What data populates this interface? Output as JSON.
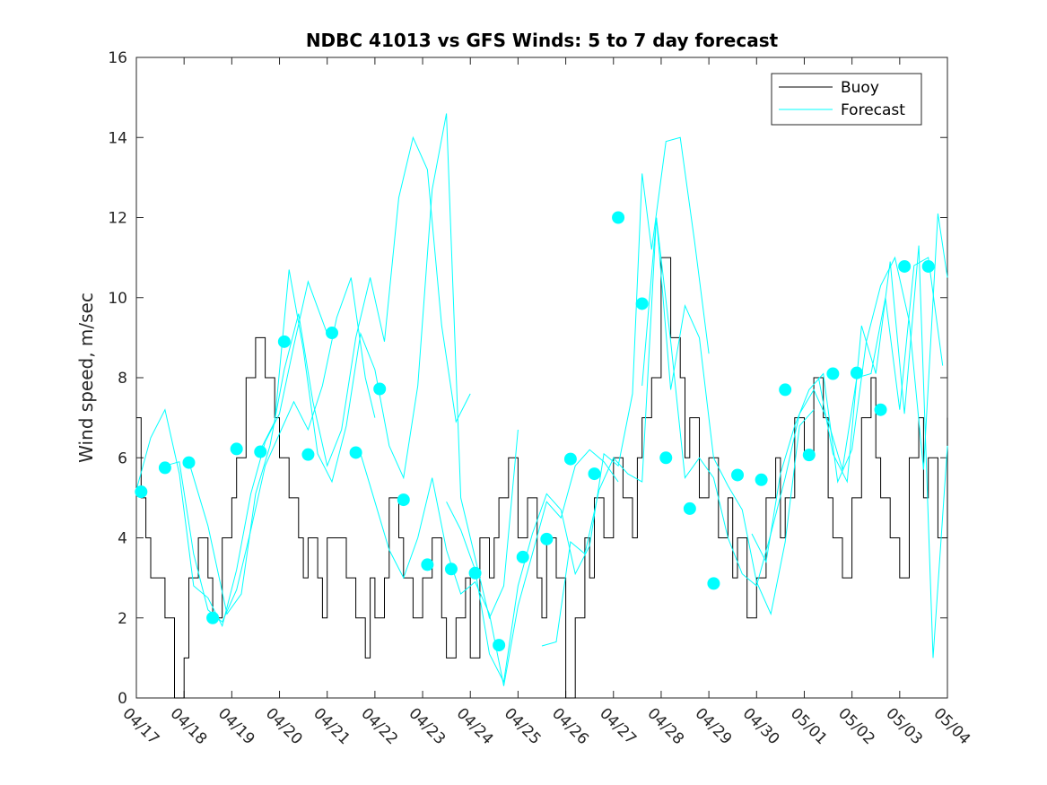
{
  "chart_data": {
    "type": "line",
    "title": "NDBC 41013 vs GFS Winds: 5 to 7 day forecast",
    "xlabel": "",
    "ylabel": "Wind speed, m/sec",
    "xlim": [
      0,
      17
    ],
    "ylim": [
      0,
      16
    ],
    "x_tick_values": [
      0,
      1,
      2,
      3,
      4,
      5,
      6,
      7,
      8,
      9,
      10,
      11,
      12,
      13,
      14,
      15,
      16,
      17
    ],
    "x_tick_labels": [
      "04/17",
      "04/18",
      "04/19",
      "04/20",
      "04/21",
      "04/22",
      "04/23",
      "04/24",
      "04/25",
      "04/26",
      "04/27",
      "04/28",
      "04/29",
      "04/30",
      "05/01",
      "05/02",
      "05/03",
      "05/04"
    ],
    "y_ticks": [
      0,
      2,
      4,
      6,
      8,
      10,
      12,
      14,
      16
    ],
    "grid": false,
    "legend": {
      "placement": "top-right",
      "entries": [
        "Buoy",
        "Forecast"
      ]
    },
    "colors": {
      "buoy": "#000000",
      "forecast": "#00FFFF",
      "marker": "#00FFFF"
    },
    "series": [
      {
        "name": "Buoy",
        "style": "step",
        "x": [
          0.0,
          0.1,
          0.2,
          0.3,
          0.5,
          0.6,
          0.8,
          1.0,
          1.1,
          1.3,
          1.5,
          1.6,
          1.8,
          2.0,
          2.1,
          2.3,
          2.5,
          2.7,
          2.9,
          3.0,
          3.2,
          3.4,
          3.5,
          3.6,
          3.8,
          3.9,
          4.0,
          4.2,
          4.4,
          4.6,
          4.8,
          4.9,
          5.0,
          5.2,
          5.3,
          5.5,
          5.6,
          5.8,
          5.9,
          6.0,
          6.2,
          6.4,
          6.5,
          6.7,
          6.9,
          7.0,
          7.2,
          7.4,
          7.5,
          7.6,
          7.8,
          8.0,
          8.2,
          8.4,
          8.5,
          8.6,
          8.8,
          9.0,
          9.2,
          9.4,
          9.5,
          9.6,
          9.8,
          10.0,
          10.2,
          10.4,
          10.5,
          10.6,
          10.8,
          11.0,
          11.2,
          11.4,
          11.5,
          11.6,
          11.8,
          12.0,
          12.2,
          12.4,
          12.5,
          12.6,
          12.8,
          13.0,
          13.2,
          13.4,
          13.5,
          13.6,
          13.8,
          14.0,
          14.2,
          14.4,
          14.5,
          14.6,
          14.8,
          15.0,
          15.2,
          15.4,
          15.5,
          15.6,
          15.8,
          16.0,
          16.2,
          16.4,
          16.5,
          16.6,
          16.8,
          17.0
        ],
        "y": [
          7,
          5,
          4,
          3,
          3,
          2,
          0,
          1,
          3,
          4,
          3,
          2,
          4,
          5,
          6,
          8,
          9,
          8,
          7,
          6,
          5,
          4,
          3,
          4,
          3,
          2,
          4,
          4,
          3,
          2,
          1,
          3,
          2,
          3,
          5,
          4,
          3,
          2,
          2,
          3,
          4,
          2,
          1,
          2,
          3,
          1,
          4,
          3,
          4,
          5,
          6,
          4,
          5,
          3,
          2,
          4,
          3,
          0,
          2,
          4,
          3,
          5,
          4,
          6,
          5,
          4,
          6,
          7,
          8,
          11,
          9,
          8,
          6,
          7,
          5,
          6,
          4,
          5,
          3,
          4,
          2,
          3,
          5,
          6,
          4,
          5,
          7,
          6,
          8,
          7,
          5,
          4,
          3,
          5,
          7,
          8,
          6,
          5,
          4,
          3,
          6,
          7,
          5,
          6,
          4,
          7
        ]
      },
      {
        "name": "Forecast",
        "style": "lines",
        "segments": [
          {
            "x": [
              0.0,
              0.3,
              0.6,
              0.9,
              1.2,
              1.5,
              1.8,
              2.1,
              2.4,
              2.7,
              3.0,
              3.3,
              3.6,
              4.0
            ],
            "y": [
              5.2,
              6.5,
              7.2,
              5.6,
              2.8,
              2.5,
              1.8,
              3.2,
              5.1,
              6.4,
              7.1,
              8.8,
              10.4,
              9.1
            ]
          },
          {
            "x": [
              0.6,
              0.9,
              1.2,
              1.5,
              1.8,
              2.1,
              2.4,
              2.7,
              3.0,
              3.3,
              3.6,
              3.9,
              4.2,
              4.5,
              4.8,
              5.0
            ],
            "y": [
              5.8,
              5.9,
              3.6,
              2.2,
              1.9,
              2.7,
              4.2,
              5.8,
              6.6,
              7.4,
              6.7,
              7.8,
              9.5,
              10.5,
              8.0,
              7.0
            ]
          },
          {
            "x": [
              1.1,
              1.5,
              1.9,
              2.2,
              2.5,
              2.8,
              3.1,
              3.4,
              3.7,
              4.0,
              4.3,
              4.6,
              4.9,
              5.2,
              5.5,
              5.8,
              6.1,
              6.4,
              6.7,
              7.0
            ],
            "y": [
              5.9,
              4.3,
              2.1,
              2.6,
              5.1,
              6.3,
              8.2,
              9.6,
              7.4,
              5.8,
              6.7,
              9.0,
              10.5,
              8.9,
              12.5,
              14.0,
              13.2,
              9.3,
              6.9,
              7.6
            ]
          },
          {
            "x": [
              2.6,
              2.9,
              3.2,
              3.5,
              3.8,
              4.1,
              4.4,
              4.7,
              5.0,
              5.3,
              5.6,
              5.9,
              6.2,
              6.5,
              6.8,
              7.1,
              7.4,
              7.7,
              8.0
            ],
            "y": [
              6.2,
              6.9,
              10.7,
              8.7,
              6.1,
              5.4,
              6.8,
              9.1,
              8.2,
              6.3,
              5.5,
              7.8,
              12.7,
              14.6,
              5.0,
              3.5,
              2.0,
              2.8,
              6.7
            ]
          },
          {
            "x": [
              4.7,
              5.0,
              5.3,
              5.6,
              5.9,
              6.2,
              6.5,
              6.8,
              7.1,
              7.4,
              7.7,
              8.0,
              8.3,
              8.6,
              8.9,
              9.2,
              9.5,
              9.8,
              10.1
            ],
            "y": [
              6.1,
              4.9,
              3.7,
              3.0,
              4.0,
              5.5,
              3.7,
              2.6,
              2.9,
              2.1,
              0.3,
              2.3,
              3.6,
              4.9,
              4.5,
              5.8,
              6.2,
              5.9,
              5.4
            ]
          },
          {
            "x": [
              6.5,
              6.8,
              7.1,
              7.4,
              7.7,
              8.0,
              8.3,
              8.6,
              8.9,
              9.2,
              9.5,
              9.8,
              10.1,
              10.4,
              10.6,
              10.8,
              11.1,
              11.4,
              11.7,
              12.0
            ],
            "y": [
              4.9,
              4.2,
              3.2,
              1.1,
              0.4,
              2.8,
              4.1,
              5.1,
              4.7,
              3.1,
              3.8,
              6.1,
              5.8,
              7.6,
              13.1,
              11.2,
              13.9,
              14.0,
              11.4,
              8.6
            ]
          },
          {
            "x": [
              8.5,
              8.8,
              9.1,
              9.4,
              9.7,
              10.0,
              10.3,
              10.6,
              10.9,
              11.2,
              11.5,
              11.8,
              12.1,
              12.4,
              12.7,
              13.0,
              13.3,
              13.6,
              13.9,
              14.2
            ],
            "y": [
              1.3,
              1.4,
              3.9,
              3.6,
              5.2,
              6.0,
              5.6,
              5.4,
              12.0,
              7.7,
              9.8,
              9.0,
              6.0,
              5.3,
              4.7,
              2.9,
              2.1,
              3.9,
              6.8,
              7.2
            ]
          },
          {
            "x": [
              10.6,
              10.9,
              11.2,
              11.5,
              11.8,
              12.1,
              12.4,
              12.7,
              13.0,
              13.3,
              13.6,
              13.9,
              14.2,
              14.5,
              14.8,
              15.1,
              15.4,
              15.7,
              16.0,
              16.3,
              16.6,
              16.9
            ],
            "y": [
              7.8,
              12.0,
              8.9,
              5.5,
              6.0,
              5.5,
              4.0,
              3.1,
              2.8,
              4.1,
              5.5,
              7.1,
              7.7,
              6.9,
              5.7,
              8.0,
              8.1,
              10.0,
              7.2,
              10.8,
              11.0,
              8.3
            ]
          },
          {
            "x": [
              12.9,
              13.2,
              13.5,
              13.8,
              14.1,
              14.4,
              14.7,
              15.0,
              15.3,
              15.6,
              15.9,
              16.2,
              16.5,
              16.8,
              17.0
            ],
            "y": [
              4.1,
              3.4,
              5.6,
              6.8,
              7.7,
              8.1,
              5.4,
              6.2,
              8.9,
              10.3,
              11.0,
              9.4,
              5.7,
              12.1,
              10.5
            ]
          },
          {
            "x": [
              14.3,
              14.6,
              14.9,
              15.2,
              15.5,
              15.8,
              16.1,
              16.4,
              16.7,
              17.0
            ],
            "y": [
              8.0,
              6.1,
              5.4,
              9.3,
              8.1,
              10.9,
              7.1,
              11.3,
              1.0,
              6.3
            ]
          }
        ]
      },
      {
        "name": "Forecast markers",
        "style": "markers",
        "x": [
          0.1,
          0.6,
          1.1,
          1.6,
          2.1,
          2.6,
          3.1,
          3.6,
          4.1,
          4.6,
          5.1,
          5.6,
          6.1,
          6.6,
          7.1,
          7.6,
          8.1,
          8.6,
          9.1,
          9.6,
          10.1,
          10.6,
          11.1,
          11.6,
          12.1,
          12.6,
          13.1,
          13.6,
          14.1,
          14.6,
          15.1,
          15.6,
          16.1,
          16.6
        ],
        "y": [
          5.15,
          5.75,
          5.88,
          2.0,
          6.22,
          6.15,
          8.9,
          6.08,
          9.12,
          6.13,
          7.72,
          4.95,
          3.33,
          3.22,
          3.12,
          1.32,
          3.52,
          3.97,
          5.97,
          5.6,
          12.0,
          9.85,
          6.0,
          4.73,
          2.86,
          5.57,
          5.45,
          7.7,
          6.07,
          8.1,
          8.12,
          7.2,
          10.78,
          10.78
        ]
      }
    ]
  }
}
